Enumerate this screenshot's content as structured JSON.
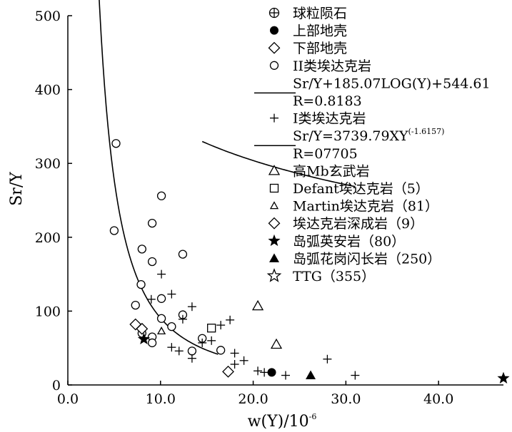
{
  "chart_data": {
    "type": "scatter",
    "xlabel": "w(Y)/10",
    "xlabel_sup": "-6",
    "ylabel": "Sr/Y",
    "xlim": [
      0,
      47
    ],
    "ylim": [
      0,
      500
    ],
    "xticks": [
      0,
      10,
      20,
      30,
      40
    ],
    "xtick_labels": [
      "0.0",
      "10.0",
      "20.0",
      "30.0",
      "40.0"
    ],
    "yticks": [
      0,
      100,
      200,
      300,
      400,
      500
    ],
    "ytick_labels": [
      "0",
      "100",
      "200",
      "300",
      "400",
      "500"
    ],
    "grid": false,
    "legend_position": "top-right",
    "legend": [
      {
        "marker": "circle-plus",
        "text": "球粒陨石"
      },
      {
        "marker": "filled-circle",
        "text": "上部地壳"
      },
      {
        "marker": "diamond",
        "text": "下部地壳"
      },
      {
        "marker": "circle",
        "text": "II类埃达克岩"
      },
      {
        "marker": "line",
        "text": "Sr/Y+185.07LOG(Y)+544.61",
        "text2": "R=0.8183"
      },
      {
        "marker": "plus",
        "text": "I类埃达克岩"
      },
      {
        "marker": "line",
        "text": "Sr/Y=3739.79XY",
        "sup": "(-1.6157)",
        "text2": "R=07705"
      },
      {
        "marker": "triangle",
        "text": "高Mb玄武岩"
      },
      {
        "marker": "square",
        "text": "Defant埃达克岩（5）"
      },
      {
        "marker": "small-triangle",
        "text": "Martin埃达克岩（81）"
      },
      {
        "marker": "diamond",
        "text": "埃达克岩深成岩（9）"
      },
      {
        "marker": "filled-star",
        "text": "岛弧英安岩（80）"
      },
      {
        "marker": "filled-triangle",
        "text": "岛弧花岗闪长岩（250）"
      },
      {
        "marker": "open-star",
        "text": "TTG（355）"
      }
    ],
    "series": [
      {
        "marker": "circle",
        "points": [
          [
            5.2,
            327
          ],
          [
            5,
            209
          ],
          [
            10.1,
            256
          ],
          [
            9.1,
            219
          ],
          [
            8,
            184
          ],
          [
            9.1,
            167
          ],
          [
            12.4,
            177
          ],
          [
            7.9,
            136
          ],
          [
            7.3,
            108
          ],
          [
            10.1,
            117
          ],
          [
            12.4,
            95
          ],
          [
            10.1,
            90
          ],
          [
            11.2,
            79
          ],
          [
            14.5,
            63
          ],
          [
            9.1,
            65
          ],
          [
            9.1,
            57
          ],
          [
            8,
            70
          ],
          [
            13.4,
            46
          ],
          [
            16.5,
            47
          ]
        ]
      },
      {
        "marker": "plus",
        "points": [
          [
            10.1,
            150
          ],
          [
            11.2,
            123
          ],
          [
            9,
            116
          ],
          [
            13.4,
            106
          ],
          [
            12.4,
            89
          ],
          [
            17.5,
            88
          ],
          [
            16.5,
            81
          ],
          [
            15.5,
            60
          ],
          [
            14.5,
            57
          ],
          [
            11.2,
            51
          ],
          [
            12,
            46
          ],
          [
            13.4,
            36
          ],
          [
            18,
            43
          ],
          [
            19,
            33
          ],
          [
            18,
            28
          ],
          [
            20.5,
            19
          ],
          [
            21.2,
            17
          ],
          [
            23.5,
            13
          ],
          [
            28,
            35
          ],
          [
            31,
            13
          ]
        ]
      },
      {
        "marker": "open-triangle",
        "points": [
          [
            20.5,
            107
          ],
          [
            22.5,
            55
          ]
        ]
      },
      {
        "marker": "small-triangle",
        "points": [
          [
            10.1,
            73
          ]
        ]
      },
      {
        "marker": "square",
        "points": [
          [
            15.5,
            77
          ]
        ]
      },
      {
        "marker": "diamond",
        "points": [
          [
            7.3,
            82
          ],
          [
            8,
            76
          ],
          [
            17.3,
            18
          ]
        ]
      },
      {
        "marker": "filled-star",
        "points": [
          [
            8.2,
            62
          ],
          [
            47,
            9
          ]
        ]
      },
      {
        "marker": "filled-circle",
        "points": [
          [
            22,
            17
          ]
        ]
      },
      {
        "marker": "filled-triangle",
        "points": [
          [
            26.2,
            13
          ]
        ]
      }
    ],
    "curves": [
      {
        "name": "Sr/Y=3739.79XY^(-1.6157)",
        "x_range": [
          1.8,
          16.2
        ],
        "type": "power",
        "a": 3739.79,
        "b": -1.6157
      },
      {
        "name": "Sr/Y+185.07LOG(Y)+544.61",
        "x_range": [
          14.5,
          31
        ],
        "type": "log",
        "a": -185.07,
        "b": 544.61
      }
    ]
  }
}
